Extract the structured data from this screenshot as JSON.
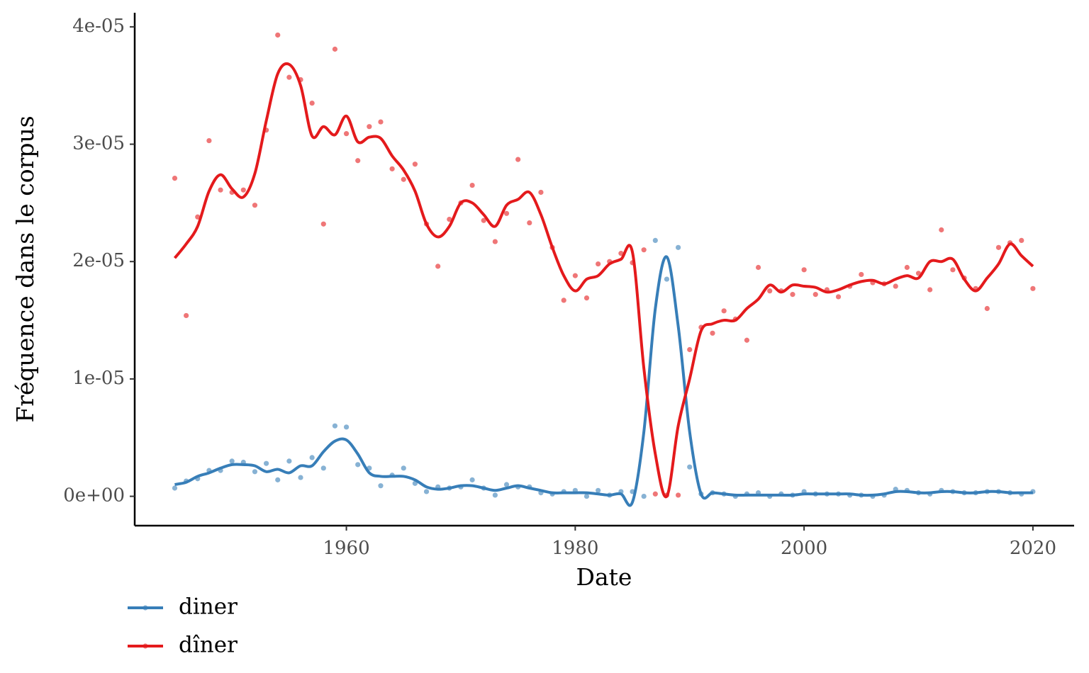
{
  "chart_data": {
    "type": "scatter",
    "x_label": "Date",
    "y_label": "Fréquence dans le corpus",
    "x": [
      1945,
      1946,
      1947,
      1948,
      1949,
      1950,
      1951,
      1952,
      1953,
      1954,
      1955,
      1956,
      1957,
      1958,
      1959,
      1960,
      1961,
      1962,
      1963,
      1964,
      1965,
      1966,
      1967,
      1968,
      1969,
      1970,
      1971,
      1972,
      1973,
      1974,
      1975,
      1976,
      1977,
      1978,
      1979,
      1980,
      1981,
      1982,
      1983,
      1984,
      1985,
      1986,
      1987,
      1988,
      1989,
      1990,
      1991,
      1992,
      1993,
      1994,
      1995,
      1996,
      1997,
      1998,
      1999,
      2000,
      2001,
      2002,
      2003,
      2004,
      2005,
      2006,
      2007,
      2008,
      2009,
      2010,
      2011,
      2012,
      2013,
      2014,
      2015,
      2016,
      2017,
      2018,
      2019,
      2020
    ],
    "xlim": [
      1941.5,
      2023.6
    ],
    "xticks": [
      1960,
      1980,
      2000,
      2020
    ],
    "ylim": [
      -2.5e-06,
      4.12e-05
    ],
    "yticks": [
      {
        "value": 0,
        "label": "0e+00"
      },
      {
        "value": 1e-05,
        "label": "1e-05"
      },
      {
        "value": 2e-05,
        "label": "2e-05"
      },
      {
        "value": 3e-05,
        "label": "3e-05"
      },
      {
        "value": 4e-05,
        "label": "4e-05"
      }
    ],
    "legend": "bottom-left",
    "grid": false,
    "series": [
      {
        "name": "diner",
        "color": "#377eb8",
        "values": [
          7e-07,
          1.3e-06,
          1.5e-06,
          2.2e-06,
          2.2e-06,
          3e-06,
          2.9e-06,
          2.1e-06,
          2.8e-06,
          1.4e-06,
          3e-06,
          1.6e-06,
          3.3e-06,
          2.4e-06,
          6e-06,
          5.9e-06,
          2.7e-06,
          2.4e-06,
          9e-07,
          1.8e-06,
          2.4e-06,
          1.1e-06,
          4e-07,
          8e-07,
          7e-07,
          8e-07,
          1.4e-06,
          7e-07,
          1e-07,
          1e-06,
          8e-07,
          8e-07,
          3e-07,
          2e-07,
          4e-07,
          5e-07,
          0,
          5e-07,
          1e-07,
          4e-07,
          4e-07,
          0,
          2.18e-05,
          1.85e-05,
          2.12e-05,
          2.5e-06,
          2e-07,
          3e-07,
          2e-07,
          0,
          2e-07,
          3e-07,
          0,
          2e-07,
          1e-07,
          4e-07,
          2e-07,
          2e-07,
          2e-07,
          1e-07,
          1e-07,
          0,
          1e-07,
          6e-07,
          5e-07,
          3e-07,
          2e-07,
          5e-07,
          4e-07,
          3e-07,
          3e-07,
          4e-07,
          4e-07,
          3e-07,
          2e-07,
          4e-07
        ],
        "smooth": [
          1e-06,
          1.2e-06,
          1.7e-06,
          2e-06,
          2.4e-06,
          2.7e-06,
          2.7e-06,
          2.6e-06,
          2.1e-06,
          2.3e-06,
          2e-06,
          2.6e-06,
          2.6e-06,
          3.8e-06,
          4.7e-06,
          4.8e-06,
          3.6e-06,
          2e-06,
          1.7e-06,
          1.7e-06,
          1.7e-06,
          1.4e-06,
          8e-07,
          6e-07,
          7e-07,
          9e-07,
          9e-07,
          7e-07,
          5e-07,
          7e-07,
          9e-07,
          7e-07,
          5e-07,
          3e-07,
          3e-07,
          3e-07,
          3e-07,
          2e-07,
          1e-07,
          2e-07,
          -5e-07,
          5.5e-06,
          1.6e-05,
          2.04e-05,
          1.45e-05,
          5.5e-06,
          2e-07,
          3e-07,
          2e-07,
          1e-07,
          1e-07,
          1e-07,
          1e-07,
          1e-07,
          1e-07,
          2e-07,
          2e-07,
          2e-07,
          2e-07,
          2e-07,
          1e-07,
          1e-07,
          2e-07,
          4e-07,
          4e-07,
          3e-07,
          3e-07,
          4e-07,
          4e-07,
          3e-07,
          3e-07,
          4e-07,
          4e-07,
          3e-07,
          3e-07,
          3e-07
        ]
      },
      {
        "name": "dîner",
        "color": "#e41a1c",
        "values": [
          2.71e-05,
          1.54e-05,
          2.38e-05,
          3.03e-05,
          2.61e-05,
          2.59e-05,
          2.61e-05,
          2.48e-05,
          3.12e-05,
          3.93e-05,
          3.57e-05,
          3.55e-05,
          3.35e-05,
          2.32e-05,
          3.81e-05,
          3.09e-05,
          2.86e-05,
          3.15e-05,
          3.19e-05,
          2.79e-05,
          2.7e-05,
          2.83e-05,
          2.32e-05,
          1.96e-05,
          2.36e-05,
          2.5e-05,
          2.65e-05,
          2.35e-05,
          2.17e-05,
          2.41e-05,
          2.87e-05,
          2.33e-05,
          2.59e-05,
          2.12e-05,
          1.67e-05,
          1.88e-05,
          1.69e-05,
          1.98e-05,
          2e-05,
          2.07e-05,
          1.99e-05,
          2.1e-05,
          2e-07,
          1e-07,
          1e-07,
          1.25e-05,
          1.44e-05,
          1.39e-05,
          1.58e-05,
          1.51e-05,
          1.33e-05,
          1.95e-05,
          1.75e-05,
          1.75e-05,
          1.72e-05,
          1.93e-05,
          1.72e-05,
          1.76e-05,
          1.7e-05,
          1.79e-05,
          1.89e-05,
          1.82e-05,
          1.81e-05,
          1.79e-05,
          1.95e-05,
          1.9e-05,
          1.76e-05,
          2.27e-05,
          1.93e-05,
          1.86e-05,
          1.77e-05,
          1.6e-05,
          2.12e-05,
          2.16e-05,
          2.18e-05,
          1.77e-05
        ],
        "smooth": [
          2.03e-05,
          2.15e-05,
          2.3e-05,
          2.6e-05,
          2.74e-05,
          2.62e-05,
          2.55e-05,
          2.75e-05,
          3.2e-05,
          3.6e-05,
          3.68e-05,
          3.5e-05,
          3.07e-05,
          3.15e-05,
          3.08e-05,
          3.24e-05,
          3.02e-05,
          3.06e-05,
          3.05e-05,
          2.9e-05,
          2.78e-05,
          2.6e-05,
          2.32e-05,
          2.21e-05,
          2.3e-05,
          2.5e-05,
          2.5e-05,
          2.4e-05,
          2.3e-05,
          2.48e-05,
          2.53e-05,
          2.59e-05,
          2.4e-05,
          2.12e-05,
          1.88e-05,
          1.75e-05,
          1.85e-05,
          1.88e-05,
          1.98e-05,
          2.02e-05,
          2.08e-05,
          1.09e-05,
          3.6e-06,
          0,
          6e-06,
          1e-05,
          1.41e-05,
          1.47e-05,
          1.5e-05,
          1.5e-05,
          1.6e-05,
          1.68e-05,
          1.8e-05,
          1.74e-05,
          1.8e-05,
          1.79e-05,
          1.78e-05,
          1.74e-05,
          1.76e-05,
          1.8e-05,
          1.83e-05,
          1.84e-05,
          1.81e-05,
          1.85e-05,
          1.88e-05,
          1.86e-05,
          2e-05,
          2e-05,
          2.02e-05,
          1.85e-05,
          1.75e-05,
          1.86e-05,
          1.98e-05,
          2.15e-05,
          2.05e-05,
          1.96e-05
        ]
      }
    ]
  }
}
